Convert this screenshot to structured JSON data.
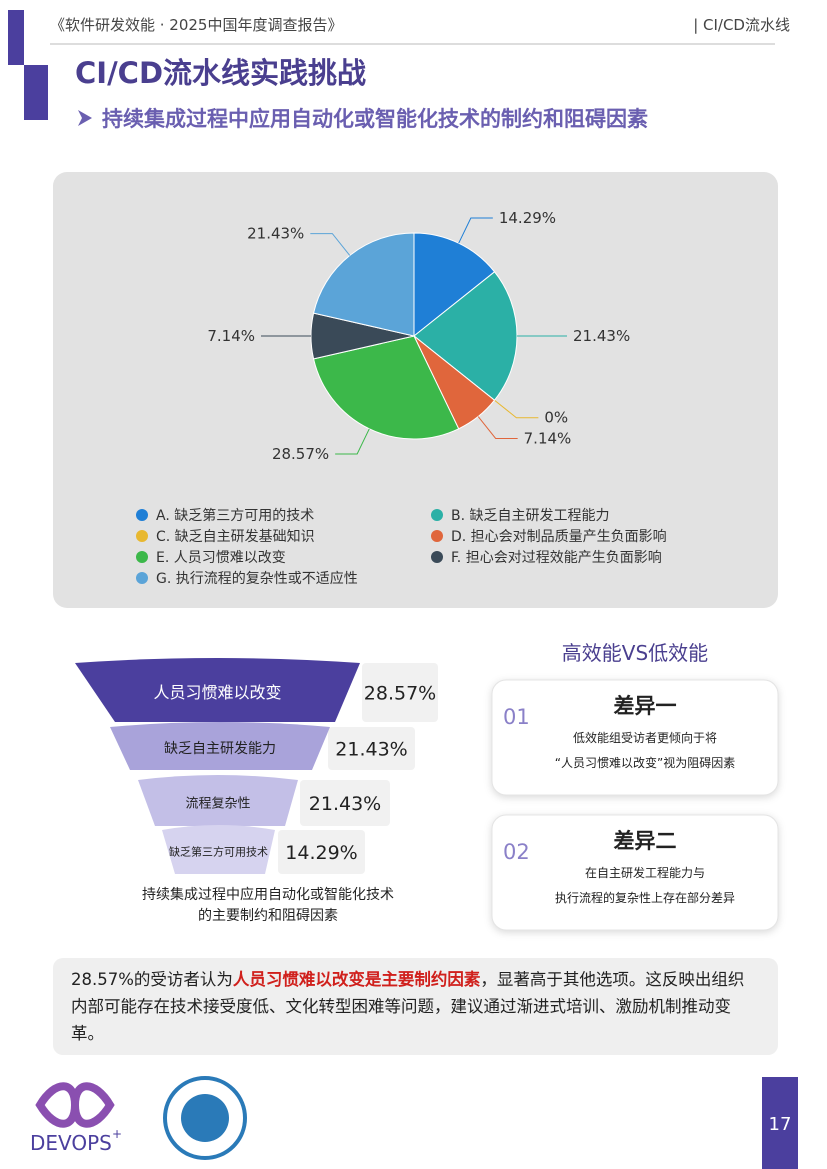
{
  "header": {
    "report": "《软件研发效能 · 2025中国年度调查报告》",
    "section": "| CI/CD流水线"
  },
  "title": "CI/CD流水线实践挑战",
  "subtitle": "持续集成过程中应用自动化或智能化技术的制约和阻碍因素",
  "chart_data": {
    "type": "pie",
    "categories": [
      "A. 缺乏第三方可用的技术",
      "B. 缺乏自主研发工程能力",
      "C. 缺乏自主研发基础知识",
      "D. 担心会对制品质量产生负面影响",
      "E. 人员习惯难以改变",
      "F. 担心会对过程效能产生负面影响",
      "G. 执行流程的复杂性或不适应性"
    ],
    "values": [
      14.29,
      21.43,
      0,
      7.14,
      28.57,
      7.14,
      21.43
    ],
    "value_labels": [
      "14.29%",
      "21.43%",
      "0%",
      "7.14%",
      "28.57%",
      "7.14%",
      "21.43%"
    ],
    "colors": [
      "#1f7fd6",
      "#2bb0a6",
      "#e8b830",
      "#e0663c",
      "#3cb84a",
      "#3a4a58",
      "#5ba4d8"
    ]
  },
  "funnel": {
    "items": [
      {
        "label": "人员习惯难以改变",
        "value": "28.57%"
      },
      {
        "label": "缺乏自主研发能力",
        "value": "21.43%"
      },
      {
        "label": "流程复杂性",
        "value": "21.43%"
      },
      {
        "label": "缺乏第三方可用技术",
        "value": "14.29%"
      }
    ],
    "caption": [
      "持续集成过程中应用自动化或智能化技术",
      "的主要制约和阻碍因素"
    ]
  },
  "comparison": {
    "title": "高效能VS低效能",
    "cards": [
      {
        "number": "01",
        "heading": "差异一",
        "lines": [
          "低效能组受访者更倾向于将",
          "“人员习惯难以改变”视为阻碍因素"
        ]
      },
      {
        "number": "02",
        "heading": "差异二",
        "lines": [
          "在自主研发工程能力与",
          "执行流程的复杂性上存在部分差异"
        ]
      }
    ]
  },
  "summary": {
    "before": "28.57%的受访者认为",
    "highlight": "人员习惯难以改变是主要制约因素",
    "after": "，显著高于其他选项。这反映出组织内部可能存在技术接受度低、文化转型困难等问题，建议通过渐进式培训、激励机制推动变革。"
  },
  "footer": {
    "logo": "DEVOPS",
    "logo_mark": "+",
    "page": "17"
  }
}
